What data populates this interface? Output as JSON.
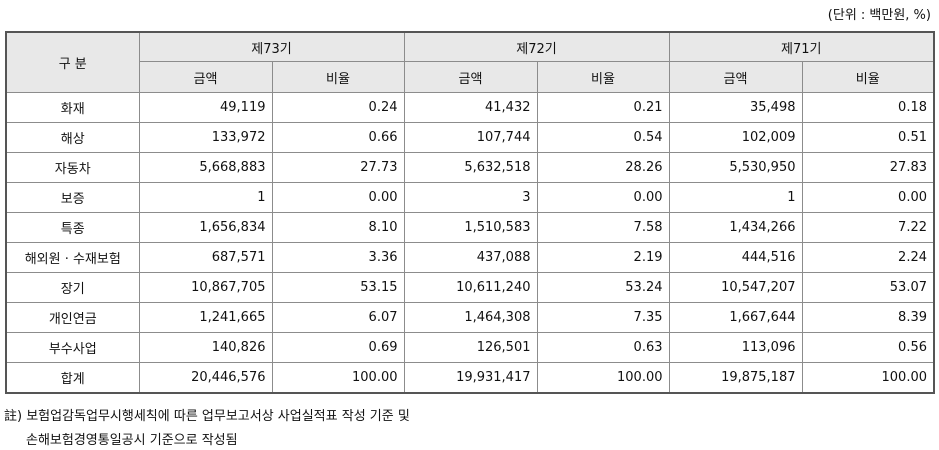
{
  "unit_label": "(단위 : 백만원, %)",
  "header": {
    "category": "구 분",
    "periods": [
      "제73기",
      "제72기",
      "제71기"
    ],
    "sub": [
      "금액",
      "비율"
    ]
  },
  "rows": [
    {
      "name": "화재",
      "v": [
        "49,119",
        "0.24",
        "41,432",
        "0.21",
        "35,498",
        "0.18"
      ]
    },
    {
      "name": "해상",
      "v": [
        "133,972",
        "0.66",
        "107,744",
        "0.54",
        "102,009",
        "0.51"
      ]
    },
    {
      "name": "자동차",
      "v": [
        "5,668,883",
        "27.73",
        "5,632,518",
        "28.26",
        "5,530,950",
        "27.83"
      ]
    },
    {
      "name": "보증",
      "v": [
        "1",
        "0.00",
        "3",
        "0.00",
        "1",
        "0.00"
      ]
    },
    {
      "name": "특종",
      "v": [
        "1,656,834",
        "8.10",
        "1,510,583",
        "7.58",
        "1,434,266",
        "7.22"
      ]
    },
    {
      "name": "해외원 · 수재보험",
      "v": [
        "687,571",
        "3.36",
        "437,088",
        "2.19",
        "444,516",
        "2.24"
      ]
    },
    {
      "name": "장기",
      "v": [
        "10,867,705",
        "53.15",
        "10,611,240",
        "53.24",
        "10,547,207",
        "53.07"
      ]
    },
    {
      "name": "개인연금",
      "v": [
        "1,241,665",
        "6.07",
        "1,464,308",
        "7.35",
        "1,667,644",
        "8.39"
      ]
    },
    {
      "name": "부수사업",
      "v": [
        "140,826",
        "0.69",
        "126,501",
        "0.63",
        "113,096",
        "0.56"
      ]
    },
    {
      "name": "합계",
      "v": [
        "20,446,576",
        "100.00",
        "19,931,417",
        "100.00",
        "19,875,187",
        "100.00"
      ]
    }
  ],
  "notes": [
    "註) 보험업감독업무시행세칙에 따른 업무보고서상 사업실적표 작성 기준 및",
    "손해보험경영통일공시 기준으로 작성됨"
  ]
}
